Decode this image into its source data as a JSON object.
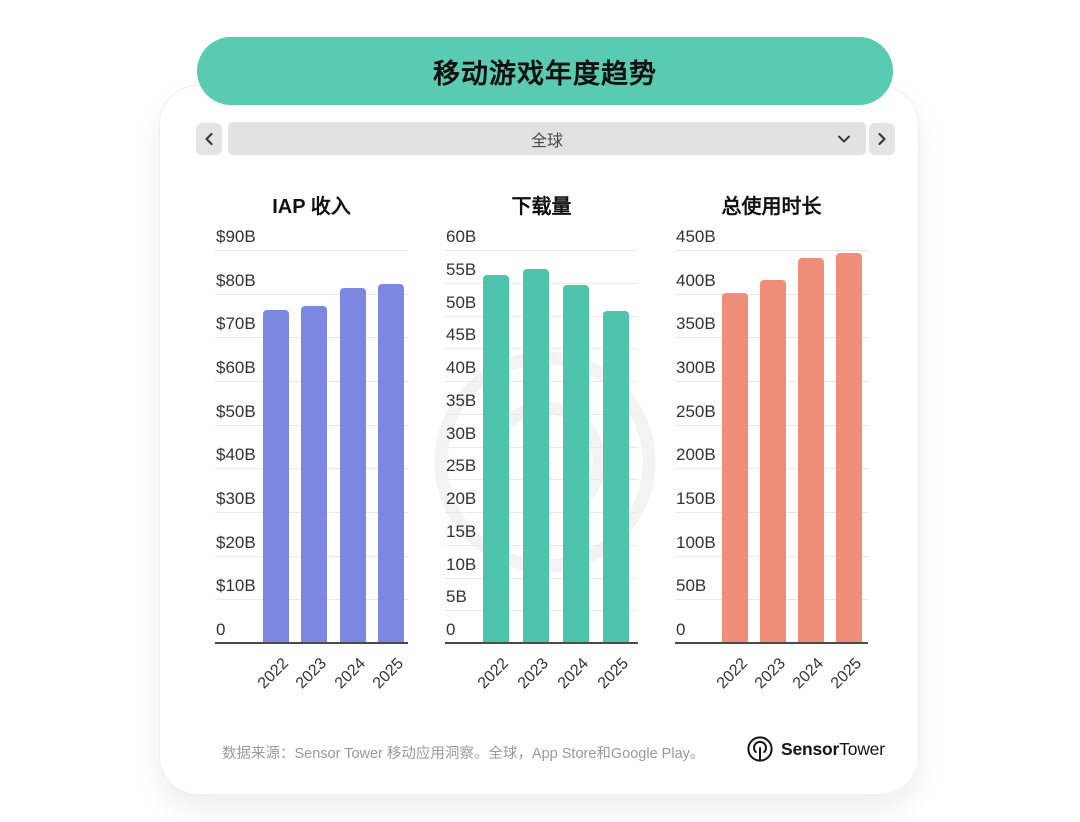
{
  "header": {
    "title": "移动游戏年度趋势"
  },
  "selector": {
    "value": "全球"
  },
  "colors": {
    "accent_teal": "#58CBB1",
    "iap_bar": "#7B87E0",
    "downloads_bar": "#4EC4AD",
    "usage_bar": "#F08E79",
    "control_gray": "#E2E2E2"
  },
  "chart_data": [
    {
      "type": "bar",
      "title": "IAP 收入",
      "categories": [
        "2022",
        "2023",
        "2024",
        "2025"
      ],
      "values": [
        76,
        77,
        81,
        82
      ],
      "unit": "USD billions",
      "ylim": [
        0,
        90
      ],
      "bar_color": "#7B87E0",
      "grid": true,
      "yticks": [
        {
          "label": "$90B",
          "value": 90
        },
        {
          "label": "$80B",
          "value": 80
        },
        {
          "label": "$70B",
          "value": 70
        },
        {
          "label": "$60B",
          "value": 60
        },
        {
          "label": "$50B",
          "value": 50
        },
        {
          "label": "$40B",
          "value": 40
        },
        {
          "label": "$30B",
          "value": 30
        },
        {
          "label": "$20B",
          "value": 20
        },
        {
          "label": "$10B",
          "value": 10
        },
        {
          "label": "0",
          "value": 0
        }
      ]
    },
    {
      "type": "bar",
      "title": "下载量",
      "categories": [
        "2022",
        "2023",
        "2024",
        "2025"
      ],
      "values": [
        56,
        57,
        54.5,
        50.5
      ],
      "unit": "billions of downloads",
      "ylim": [
        0,
        60
      ],
      "bar_color": "#4EC4AD",
      "grid": true,
      "yticks": [
        {
          "label": "60B",
          "value": 60
        },
        {
          "label": "55B",
          "value": 55
        },
        {
          "label": "50B",
          "value": 50
        },
        {
          "label": "45B",
          "value": 45
        },
        {
          "label": "40B",
          "value": 40
        },
        {
          "label": "35B",
          "value": 35
        },
        {
          "label": "30B",
          "value": 30
        },
        {
          "label": "25B",
          "value": 25
        },
        {
          "label": "20B",
          "value": 20
        },
        {
          "label": "15B",
          "value": 15
        },
        {
          "label": "10B",
          "value": 10
        },
        {
          "label": "5B",
          "value": 5
        },
        {
          "label": "0",
          "value": 0
        }
      ]
    },
    {
      "type": "bar",
      "title": "总使用时长",
      "categories": [
        "2022",
        "2023",
        "2024",
        "2025"
      ],
      "values": [
        400,
        415,
        440,
        445
      ],
      "unit": "billions of hours",
      "ylim": [
        0,
        450
      ],
      "bar_color": "#F08E79",
      "grid": true,
      "yticks": [
        {
          "label": "450B",
          "value": 450
        },
        {
          "label": "400B",
          "value": 400
        },
        {
          "label": "350B",
          "value": 350
        },
        {
          "label": "300B",
          "value": 300
        },
        {
          "label": "250B",
          "value": 250
        },
        {
          "label": "200B",
          "value": 200
        },
        {
          "label": "150B",
          "value": 150
        },
        {
          "label": "100B",
          "value": 100
        },
        {
          "label": "50B",
          "value": 50
        },
        {
          "label": "0",
          "value": 0
        }
      ]
    }
  ],
  "footer": {
    "source_text": "数据来源：Sensor Tower 移动应用洞察。全球，App Store和Google Play。",
    "logo_bold": "Sensor",
    "logo_regular": "Tower"
  }
}
